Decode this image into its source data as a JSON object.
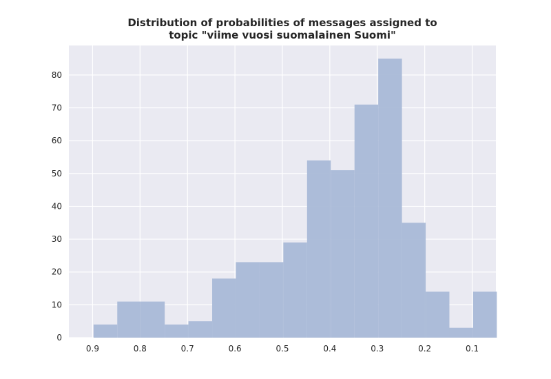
{
  "chart_data": {
    "type": "bar",
    "title_lines": [
      "Distribution of probabilities of messages assigned to",
      "topic \"viime vuosi suomalainen Suomi\""
    ],
    "xlabel": "",
    "ylabel": "",
    "x_axis_reversed": true,
    "xlim": [
      0.95,
      0.05
    ],
    "ylim": [
      0,
      89
    ],
    "xticks": [
      0.9,
      0.8,
      0.7,
      0.6,
      0.5,
      0.4,
      0.3,
      0.2,
      0.1
    ],
    "xtick_labels": [
      "0.9",
      "0.8",
      "0.7",
      "0.6",
      "0.5",
      "0.4",
      "0.3",
      "0.2",
      "0.1"
    ],
    "yticks": [
      0,
      10,
      20,
      30,
      40,
      50,
      60,
      70,
      80
    ],
    "ytick_labels": [
      "0",
      "10",
      "20",
      "30",
      "40",
      "50",
      "60",
      "70",
      "80"
    ],
    "grid": true,
    "bars": [
      {
        "x_start": 0.898,
        "x_end": 0.848,
        "value": 4
      },
      {
        "x_start": 0.848,
        "x_end": 0.798,
        "value": 11
      },
      {
        "x_start": 0.798,
        "x_end": 0.748,
        "value": 11
      },
      {
        "x_start": 0.748,
        "x_end": 0.698,
        "value": 4
      },
      {
        "x_start": 0.698,
        "x_end": 0.648,
        "value": 5
      },
      {
        "x_start": 0.648,
        "x_end": 0.598,
        "value": 18
      },
      {
        "x_start": 0.598,
        "x_end": 0.548,
        "value": 23
      },
      {
        "x_start": 0.548,
        "x_end": 0.498,
        "value": 23
      },
      {
        "x_start": 0.498,
        "x_end": 0.448,
        "value": 29
      },
      {
        "x_start": 0.448,
        "x_end": 0.398,
        "value": 54
      },
      {
        "x_start": 0.398,
        "x_end": 0.348,
        "value": 51
      },
      {
        "x_start": 0.348,
        "x_end": 0.298,
        "value": 71
      },
      {
        "x_start": 0.298,
        "x_end": 0.248,
        "value": 85
      },
      {
        "x_start": 0.248,
        "x_end": 0.198,
        "value": 35
      },
      {
        "x_start": 0.198,
        "x_end": 0.148,
        "value": 14
      },
      {
        "x_start": 0.148,
        "x_end": 0.098,
        "value": 3
      },
      {
        "x_start": 0.098,
        "x_end": 0.048,
        "value": 14
      }
    ]
  },
  "colors": {
    "bar": "#a9b9d7",
    "plot_background": "#eaeaf2",
    "grid": "#ffffff",
    "text": "#262626"
  }
}
